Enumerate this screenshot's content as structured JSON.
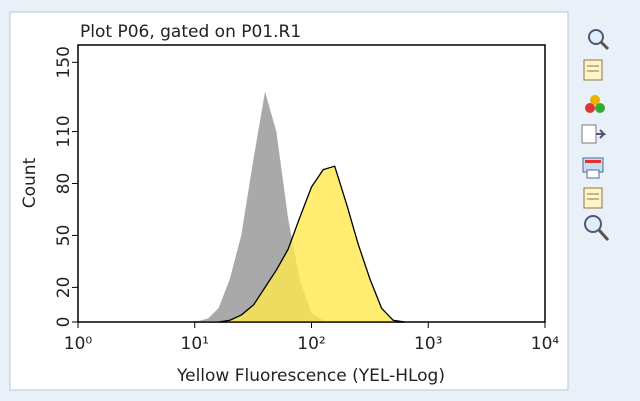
{
  "chart_data": {
    "type": "area",
    "title": "Plot P06, gated on P01.R1",
    "xlabel": "Yellow Fluorescence (YEL-HLog)",
    "ylabel": "Count",
    "xscale": "log",
    "xlim": [
      1,
      10000
    ],
    "xticks": [
      {
        "value": 1,
        "label": "10⁰"
      },
      {
        "value": 10,
        "label": "10¹"
      },
      {
        "value": 100,
        "label": "10²"
      },
      {
        "value": 1000,
        "label": "10³"
      },
      {
        "value": 10000,
        "label": "10⁴"
      }
    ],
    "ylim": [
      0,
      160
    ],
    "yticks": [
      0,
      20,
      50,
      80,
      110,
      150
    ],
    "x": [
      10,
      13,
      16,
      20,
      25,
      32,
      40,
      50,
      63,
      79,
      100,
      126,
      158,
      200,
      251,
      316,
      398,
      501,
      631
    ],
    "series": [
      {
        "color": "#a9a9a9",
        "outline": false,
        "values": [
          0,
          2,
          8,
          25,
          50,
          95,
          133,
          110,
          60,
          25,
          5,
          1,
          0,
          0,
          0,
          0,
          0,
          0,
          0
        ]
      },
      {
        "color": "#ffe94d",
        "outline": true,
        "values": [
          0,
          0,
          0,
          1,
          4,
          10,
          20,
          30,
          42,
          60,
          78,
          88,
          90,
          68,
          45,
          25,
          8,
          1,
          0
        ]
      }
    ]
  }
}
